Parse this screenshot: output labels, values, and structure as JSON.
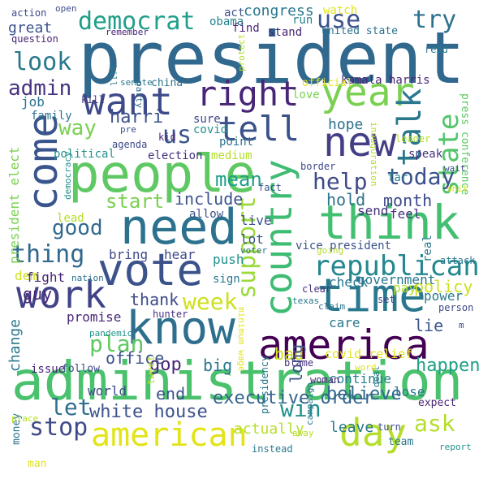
{
  "palette": [
    "#440154",
    "#3b528b",
    "#21918c",
    "#5ec962",
    "#fde725"
  ],
  "words": [
    {
      "text": "president",
      "color": "#31688e"
    },
    {
      "text": "people",
      "color": "#5ec962"
    },
    {
      "text": "administration",
      "color": "#4ac16d"
    },
    {
      "text": "need",
      "color": "#2c728e"
    },
    {
      "text": "think",
      "color": "#43bf71"
    },
    {
      "text": "know",
      "color": "#2e6f8e"
    },
    {
      "text": "vote",
      "color": "#3b528b"
    },
    {
      "text": "want",
      "color": "#3e4a89"
    },
    {
      "text": "time",
      "color": "#2a788e"
    },
    {
      "text": "work",
      "color": "#404387"
    },
    {
      "text": "new",
      "color": "#433e85"
    },
    {
      "text": "year",
      "color": "#7ad151"
    },
    {
      "text": "america",
      "color": "#440154"
    },
    {
      "text": "country",
      "color": "#3fbc73"
    },
    {
      "text": "come",
      "color": "#3a548c"
    },
    {
      "text": "tell",
      "color": "#3b528b"
    },
    {
      "text": "right",
      "color": "#482576"
    },
    {
      "text": "american",
      "color": "#e2e418"
    },
    {
      "text": "day",
      "color": "#b5de2b"
    },
    {
      "text": "democrat",
      "color": "#1f9e89"
    },
    {
      "text": "republican",
      "color": "#23888e"
    },
    {
      "text": "support",
      "color": "#9bd93c"
    },
    {
      "text": "talk",
      "color": "#2a788e"
    },
    {
      "text": "state",
      "color": "#52c569"
    },
    {
      "text": "use",
      "color": "#3b528b"
    },
    {
      "text": "try",
      "color": "#2c728e"
    },
    {
      "text": "look",
      "color": "#2a788e"
    },
    {
      "text": "admin",
      "color": "#46327e"
    },
    {
      "text": "today",
      "color": "#3b528b"
    },
    {
      "text": "help",
      "color": "#3e4a89"
    },
    {
      "text": "thing",
      "color": "#31688e"
    },
    {
      "text": "plan",
      "color": "#5ec962"
    },
    {
      "text": "week",
      "color": "#cde11d"
    },
    {
      "text": "let",
      "color": "#2e6f8e"
    },
    {
      "text": "stop",
      "color": "#3e4a89"
    },
    {
      "text": "ask",
      "color": "#b5de2b"
    },
    {
      "text": "win",
      "color": "#21918c"
    },
    {
      "text": "white house",
      "color": "#3b528b"
    },
    {
      "text": "executive order",
      "color": "#33638d"
    },
    {
      "text": "good",
      "color": "#31688e"
    },
    {
      "text": "mean",
      "color": "#1f9e89"
    },
    {
      "text": "start",
      "color": "#7ad151"
    },
    {
      "text": "harri",
      "color": "#3b528b"
    },
    {
      "text": "way",
      "color": "#7ad151"
    },
    {
      "text": "us",
      "color": "#39568c"
    },
    {
      "text": "month",
      "color": "#3e4a89"
    },
    {
      "text": "include",
      "color": "#3b528b"
    },
    {
      "text": "hold",
      "color": "#2c728e"
    },
    {
      "text": "policy",
      "color": "#cde11d"
    },
    {
      "text": "happen",
      "color": "#1fa188"
    },
    {
      "text": "lie",
      "color": "#39568c"
    },
    {
      "text": "thank",
      "color": "#3e4a89"
    },
    {
      "text": "guy",
      "color": "#482576"
    },
    {
      "text": "dem",
      "color": "#cde11d"
    },
    {
      "text": "big",
      "color": "#2a788e"
    },
    {
      "text": "gop",
      "color": "#482576"
    },
    {
      "text": "end",
      "color": "#3b528b"
    },
    {
      "text": "believe",
      "color": "#31688e"
    },
    {
      "text": "hope",
      "color": "#2c728e"
    },
    {
      "text": "congress",
      "color": "#2a788e"
    },
    {
      "text": "great",
      "color": "#3b528b"
    },
    {
      "text": "job",
      "color": "#2c728e"
    },
    {
      "text": "bad",
      "color": "#cde11d"
    },
    {
      "text": "office",
      "color": "#3b528b"
    },
    {
      "text": "promise",
      "color": "#482576"
    },
    {
      "text": "change",
      "color": "#2a788e"
    },
    {
      "text": "long",
      "color": "#3b528b"
    },
    {
      "text": "continue",
      "color": "#26828e"
    },
    {
      "text": "actually",
      "color": "#b5de2b"
    },
    {
      "text": "leave",
      "color": "#2a788e"
    },
    {
      "text": "lose",
      "color": "#2a788e"
    },
    {
      "text": "world",
      "color": "#3e4a89"
    },
    {
      "text": "send",
      "color": "#46327e"
    },
    {
      "text": "feel",
      "color": "#46327e"
    },
    {
      "text": "fight",
      "color": "#482576"
    },
    {
      "text": "bring",
      "color": "#3e4a89"
    },
    {
      "text": "hear",
      "color": "#3e4a89"
    },
    {
      "text": "push",
      "color": "#21918c"
    },
    {
      "text": "lot",
      "color": "#3b528b"
    },
    {
      "text": "live",
      "color": "#3b528b"
    },
    {
      "text": "check",
      "color": "#2a788e"
    },
    {
      "text": "government",
      "color": "#2a788e"
    },
    {
      "text": "pay",
      "color": "#b5de2b"
    },
    {
      "text": "power",
      "color": "#2a788e"
    },
    {
      "text": "care",
      "color": "#2a788e"
    },
    {
      "text": "covid relief",
      "color": "#e2e418"
    },
    {
      "text": "kamala harris",
      "color": "#482576"
    },
    {
      "text": "press conference",
      "color": "#5ec962"
    },
    {
      "text": "president elect",
      "color": "#7ad151"
    },
    {
      "text": "vice president",
      "color": "#3b528b"
    },
    {
      "text": "united state",
      "color": "#2c728e"
    },
    {
      "text": "point",
      "color": "#2c728e"
    },
    {
      "text": "election",
      "color": "#46327e"
    },
    {
      "text": "political",
      "color": "#21918c"
    },
    {
      "text": "covid",
      "color": "#21918c"
    },
    {
      "text": "sure",
      "color": "#3e4a89"
    },
    {
      "text": "medium",
      "color": "#b5de2b"
    },
    {
      "text": "allow",
      "color": "#3b528b"
    },
    {
      "text": "lead",
      "color": "#b5de2b"
    },
    {
      "text": "family",
      "color": "#2c728e"
    },
    {
      "text": "speak",
      "color": "#46327e"
    },
    {
      "text": "far",
      "color": "#26828e"
    },
    {
      "text": "real",
      "color": "#2a788e"
    },
    {
      "text": "obama",
      "color": "#26828e"
    },
    {
      "text": "watch",
      "color": "#e2e418"
    },
    {
      "text": "run",
      "color": "#26828e"
    },
    {
      "text": "stand",
      "color": "#482576"
    },
    {
      "text": "find",
      "color": "#482576"
    },
    {
      "text": "act",
      "color": "#3b528b"
    },
    {
      "text": "action",
      "color": "#3e4a89"
    },
    {
      "text": "open",
      "color": "#3e4a89"
    },
    {
      "text": "question",
      "color": "#482576"
    },
    {
      "text": "remember",
      "color": "#482576"
    },
    {
      "text": "china",
      "color": "#2c728e"
    },
    {
      "text": "love",
      "color": "#7ad151"
    },
    {
      "text": "official",
      "color": "#e2e418"
    },
    {
      "text": "issue",
      "color": "#482576"
    },
    {
      "text": "follow",
      "color": "#3e4a89"
    },
    {
      "text": "tweet",
      "color": "#b5de2b"
    },
    {
      "text": "hunter",
      "color": "#46327e"
    },
    {
      "text": "pandemic",
      "color": "#21918c"
    },
    {
      "text": "blame",
      "color": "#46327e"
    },
    {
      "text": "presidency",
      "color": "#2a788e"
    },
    {
      "text": "campaign",
      "color": "#2a788e"
    },
    {
      "text": "woman",
      "color": "#482576"
    },
    {
      "text": "away",
      "color": "#b5de2b"
    },
    {
      "text": "deal",
      "color": "#2a788e"
    },
    {
      "text": "expect",
      "color": "#482576"
    },
    {
      "text": "turn",
      "color": "#3e4a89"
    },
    {
      "text": "team",
      "color": "#2a788e"
    },
    {
      "text": "report",
      "color": "#21918c"
    },
    {
      "text": "instead",
      "color": "#2a788e"
    },
    {
      "text": "money",
      "color": "#2c728e"
    },
    {
      "text": "place",
      "color": "#b5de2b"
    },
    {
      "text": "man",
      "color": "#e2e418"
    },
    {
      "text": "nation",
      "color": "#2c728e"
    },
    {
      "text": "sign",
      "color": "#2a788e"
    },
    {
      "text": "minimum wage",
      "color": "#e2e418"
    },
    {
      "text": "voter",
      "color": "#2c728e"
    },
    {
      "text": "clear",
      "color": "#46327e"
    },
    {
      "text": "texas",
      "color": "#2a788e"
    },
    {
      "text": "claim",
      "color": "#2c728e"
    },
    {
      "text": "set",
      "color": "#3e4a89"
    },
    {
      "text": "person",
      "color": "#3e4a89"
    },
    {
      "text": "attack",
      "color": "#2a788e"
    },
    {
      "text": "going",
      "color": "#b5de2b"
    },
    {
      "text": "shit",
      "color": "#e2e418"
    },
    {
      "text": "wait",
      "color": "#3e4a89"
    },
    {
      "text": "border",
      "color": "#3e4a89"
    },
    {
      "text": "fact",
      "color": "#3b528b"
    },
    {
      "text": "democracy",
      "color": "#21918c"
    },
    {
      "text": "agenda",
      "color": "#3e4a89"
    },
    {
      "text": "pre",
      "color": "#3b528b"
    },
    {
      "text": "kid",
      "color": "#482576"
    },
    {
      "text": "leader",
      "color": "#b5de2b"
    },
    {
      "text": "inauguration",
      "color": "#b5de2b"
    },
    {
      "text": "kill",
      "color": "#46327e"
    },
    {
      "text": "senate",
      "color": "#2a788e"
    },
    {
      "text": "party",
      "color": "#2c728e"
    },
    {
      "text": "bill",
      "color": "#2a788e"
    },
    {
      "text": "protect",
      "color": "#b5de2b"
    },
    {
      "text": "read",
      "color": "#2a788e"
    },
    {
      "text": "word",
      "color": "#e2e418"
    },
    {
      "text": "m",
      "color": "#3b528b"
    }
  ]
}
